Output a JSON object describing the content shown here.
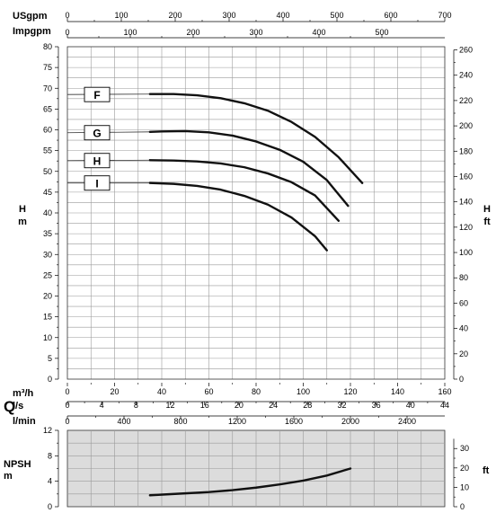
{
  "chart_data": [
    {
      "type": "line",
      "title": "",
      "flow_scales": [
        {
          "unit": "USgpm",
          "min": 0,
          "max": 700,
          "ticks": [
            0,
            100,
            200,
            300,
            400,
            500,
            600,
            700
          ]
        },
        {
          "unit": "Impgpm",
          "min": 0,
          "max": 600,
          "ticks": [
            0,
            100,
            200,
            300,
            400,
            500
          ]
        },
        {
          "unit": "m³/h",
          "min": 0,
          "max": 160,
          "ticks": [
            0,
            20,
            40,
            60,
            80,
            100,
            120,
            140,
            160
          ]
        },
        {
          "unit": "l/s",
          "min": 0,
          "max": 44,
          "ticks": [
            0,
            4,
            8,
            12,
            16,
            20,
            24,
            28,
            32,
            36,
            40,
            44
          ]
        },
        {
          "unit": "l/min",
          "min": 0,
          "max": 2666.7,
          "ticks": [
            0,
            400,
            800,
            1200,
            1600,
            2000,
            2400
          ]
        }
      ],
      "flow_symbol": "Q",
      "xlim": [
        0,
        160
      ],
      "ylabel": {
        "sym": "H",
        "unit": "m"
      },
      "ylabel_right": {
        "sym": "H",
        "unit": "ft"
      },
      "ylim": [
        0,
        80
      ],
      "ylim_right": [
        0,
        262.5
      ],
      "yticks_left": [
        0,
        5,
        10,
        15,
        20,
        25,
        30,
        35,
        40,
        45,
        50,
        55,
        60,
        65,
        70,
        75,
        80
      ],
      "yticks_right": [
        0,
        20,
        40,
        60,
        80,
        100,
        120,
        140,
        160,
        180,
        200,
        220,
        240,
        260
      ],
      "grid": true,
      "series": [
        {
          "name": "F",
          "x": [
            0,
            35,
            45,
            55,
            65,
            75,
            85,
            95,
            105,
            115,
            125
          ],
          "y": [
            68.5,
            68.6,
            68.6,
            68.3,
            67.6,
            66.4,
            64.6,
            61.9,
            58.3,
            53.4,
            47.2
          ]
        },
        {
          "name": "G",
          "x": [
            0,
            35,
            40,
            50,
            60,
            70,
            80,
            90,
            100,
            110,
            119
          ],
          "y": [
            59.3,
            59.5,
            59.6,
            59.7,
            59.4,
            58.6,
            57.2,
            55.2,
            52.3,
            47.9,
            41.7
          ]
        },
        {
          "name": "H",
          "x": [
            0,
            35,
            45,
            55,
            65,
            75,
            85,
            95,
            105,
            115
          ],
          "y": [
            52.6,
            52.7,
            52.6,
            52.4,
            51.9,
            51.0,
            49.5,
            47.4,
            44.2,
            38.1
          ]
        },
        {
          "name": "I",
          "x": [
            0,
            35,
            45,
            55,
            65,
            75,
            85,
            95,
            105,
            110
          ],
          "y": [
            47.2,
            47.2,
            47.0,
            46.5,
            45.6,
            44.1,
            42.0,
            38.9,
            34.4,
            31.0
          ]
        }
      ]
    },
    {
      "type": "line",
      "ylabel": {
        "sym": "NPSH",
        "unit": "m"
      },
      "ylabel_right": {
        "unit": "ft"
      },
      "xlim": [
        0,
        160
      ],
      "ylim": [
        0,
        12
      ],
      "yticks_left": [
        0,
        4,
        8,
        12
      ],
      "yticks_left_minor": [
        2,
        6,
        10
      ],
      "yticks_right": [
        0,
        10,
        20,
        30
      ],
      "ylim_right": [
        0,
        39.37
      ],
      "grid": true,
      "background": "#dcdcdc",
      "series": [
        {
          "name": "",
          "x": [
            35,
            50,
            60,
            70,
            80,
            90,
            100,
            110,
            120
          ],
          "y": [
            1.8,
            2.1,
            2.3,
            2.6,
            3.0,
            3.5,
            4.1,
            4.9,
            6.0
          ]
        }
      ]
    }
  ]
}
